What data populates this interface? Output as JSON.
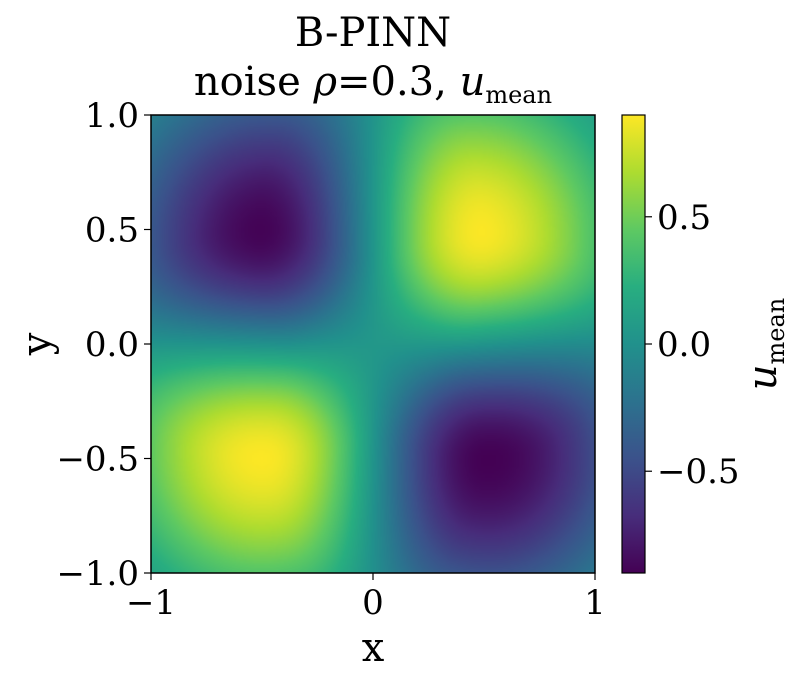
{
  "chart_data": {
    "type": "heatmap",
    "title": "B-PINN",
    "subtitle": {
      "prefix": "noise ",
      "rho_symbol": "ρ",
      "rho_value": "=0.3, ",
      "var_symbol": "u",
      "var_subscript": "mean"
    },
    "xlabel": "x",
    "ylabel": "y",
    "xlim": [
      -1,
      1
    ],
    "ylim": [
      -1,
      1
    ],
    "xticks": [
      {
        "value": -1,
        "label": "−1"
      },
      {
        "value": 0,
        "label": "0"
      },
      {
        "value": 1,
        "label": "1"
      }
    ],
    "yticks": [
      {
        "value": 1.0,
        "label": "1.0"
      },
      {
        "value": 0.5,
        "label": "0.5"
      },
      {
        "value": 0.0,
        "label": "0.0"
      },
      {
        "value": -0.5,
        "label": "−0.5"
      },
      {
        "value": -1.0,
        "label": "−1.0"
      }
    ],
    "colorbar": {
      "label_symbol": "u",
      "label_subscript": "mean",
      "vmin": -0.9,
      "vmax": 0.9,
      "ticks": [
        {
          "value": 0.5,
          "label": "0.5"
        },
        {
          "value": 0.0,
          "label": "0.0"
        },
        {
          "value": -0.5,
          "label": "−0.5"
        }
      ],
      "colormap": "viridis"
    },
    "field": "u(x,y) ≈ 0.9·sin(πx)·sin(πy) with slight peak offsets",
    "extrema": [
      {
        "x": -0.47,
        "y": 0.47,
        "value": -0.9,
        "kind": "min"
      },
      {
        "x": 0.45,
        "y": 0.48,
        "value": 0.9,
        "kind": "max"
      },
      {
        "x": -0.5,
        "y": -0.47,
        "value": 0.9,
        "kind": "max"
      },
      {
        "x": 0.52,
        "y": -0.5,
        "value": -0.9,
        "kind": "min"
      }
    ],
    "grid": false
  }
}
